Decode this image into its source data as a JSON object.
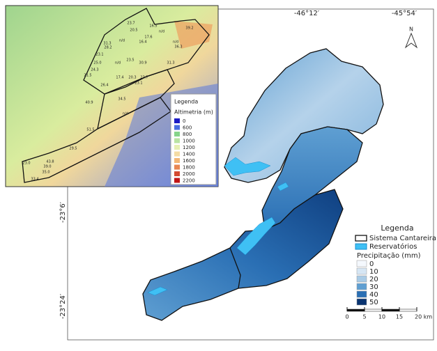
{
  "map": {
    "coords": {
      "lon": [
        "-46°12′",
        "-45°54′"
      ],
      "lat": [
        "-23°6′",
        "-23°24′"
      ]
    },
    "north": "N",
    "legend": {
      "title": "Legenda",
      "boundary": "Sistema Cantareira",
      "reservoirs": "Reservatórios",
      "precip_title": "Precipitação (mm)",
      "classes": [
        {
          "value": 0,
          "color": "#f4f8fd"
        },
        {
          "value": 10,
          "color": "#d6e6f4"
        },
        {
          "value": 20,
          "color": "#a9cbe6"
        },
        {
          "value": 30,
          "color": "#5f9fd2"
        },
        {
          "value": 40,
          "color": "#2a6fb4"
        },
        {
          "value": 50,
          "color": "#0a3471"
        }
      ]
    },
    "scale": {
      "ticks": [
        0,
        5,
        10,
        15,
        {
          "value": 20,
          "label": "20 km"
        }
      ]
    },
    "inset": {
      "legend_title": "Legenda",
      "alt_title": "Altimetria (m)",
      "classes": [
        {
          "value": 0,
          "color": "#1c1cc4"
        },
        {
          "value": 600,
          "color": "#4a6ee0"
        },
        {
          "value": 800,
          "color": "#86d48a"
        },
        {
          "value": 1000,
          "color": "#b9e3a2"
        },
        {
          "value": 1200,
          "color": "#e6efb2"
        },
        {
          "value": 1400,
          "color": "#f4dca4"
        },
        {
          "value": 1600,
          "color": "#f2b776"
        },
        {
          "value": 1800,
          "color": "#e98752"
        },
        {
          "value": 2000,
          "color": "#d44a30"
        },
        {
          "value": 2200,
          "color": "#c11414"
        }
      ],
      "stations": [
        "23.7",
        "16.5",
        "39.2",
        "20.5",
        "n/d",
        "17.6",
        "n/d",
        "16.4",
        "31.3",
        "n/d",
        "36.3",
        "28.2",
        "23.1",
        "23.5",
        "30.9",
        "25.0",
        "n/d",
        "31.3",
        "24.3",
        "21.5",
        "17.4",
        "20.3",
        "23.7",
        "23.1",
        "26.4",
        "40.9",
        "34.5",
        "n/d",
        "51.5",
        "29.5",
        "23.0",
        "43.8",
        "39.0",
        "35.0",
        "33.4"
      ]
    }
  }
}
